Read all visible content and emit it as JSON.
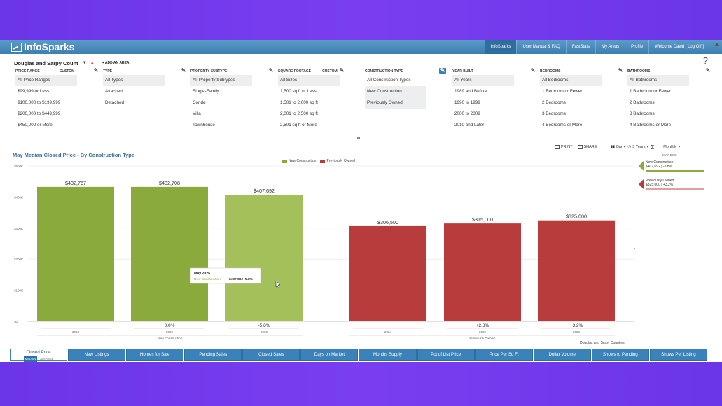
{
  "header": {
    "logo": "InfoSparks",
    "nav": [
      "InfoSparks",
      "User Manual & FAQ",
      "FastStats",
      "My Areas",
      "Profile",
      "Welcome David [ Log Off ]"
    ]
  },
  "area": {
    "selected": "Douglas and Sarpy Count",
    "add_label": "+ ADD AN AREA"
  },
  "filters": [
    {
      "title": "PRICE RANGE",
      "custom": "CUSTOM",
      "options": [
        "All Price Ranges",
        "$99,999 or Less",
        "$100,000 to $199,999",
        "$200,000 to $449,999",
        "$450,000 or More"
      ]
    },
    {
      "title": "TYPE",
      "custom": "",
      "options": [
        "All Types",
        "Attached",
        "Detached"
      ]
    },
    {
      "title": "PROPERTY SUBTYPE",
      "custom": "",
      "options": [
        "All Property Subtypes",
        "Single-Family",
        "Condo",
        "Villa",
        "Townhouse"
      ]
    },
    {
      "title": "SQUARE FOOTAGE",
      "custom": "CUSTOM",
      "options": [
        "All Sizes",
        "1,500 sq ft or Less",
        "1,501 to 2,000 sq ft",
        "2,001 to 2,500 sq ft",
        "2,501 sq ft or More"
      ]
    },
    {
      "title": "CONSTRUCTION TYPE",
      "custom": "",
      "options": [
        "All Construction Types",
        "New Construction",
        "Previously Owned"
      ]
    },
    {
      "title": "YEAR BUILT",
      "custom": "",
      "options": [
        "All Years",
        "1989 and Before",
        "1990 to 1999",
        "2000 to 2009",
        "2010 and Later"
      ]
    },
    {
      "title": "BEDROOMS",
      "custom": "",
      "options": [
        "All Bedrooms",
        "1 Bedroom or Fewer",
        "2 Bedrooms",
        "3 Bedrooms",
        "4 Bedrooms or More"
      ]
    },
    {
      "title": "BATHROOMS",
      "custom": "",
      "options": [
        "All Bathrooms",
        "1 Bathroom or Fewer",
        "2 Bathrooms",
        "3 Bathrooms",
        "4 Bathrooms or More"
      ]
    }
  ],
  "toolbar": {
    "print": "PRINT",
    "share": "SHARE",
    "chart_type": "Bar",
    "range": "3 Years",
    "period": "Monthly",
    "sigma": "Σ"
  },
  "chart_data": {
    "type": "bar",
    "title": "May Median Closed Price - By Construction Type",
    "yticks": [
      "$500K",
      "$400K",
      "$300K",
      "$200K",
      "$100K",
      "$0"
    ],
    "ylim": [
      0,
      500000
    ],
    "series": [
      {
        "name": "New Construction",
        "color": "#8aab3c",
        "group_label": "New Construction",
        "years": [
          "2024",
          "2025",
          "2026"
        ],
        "values": [
          432757,
          432708,
          407692
        ],
        "labels": [
          "$432,757",
          "$432,708",
          "$407,692"
        ],
        "changes": [
          "",
          "0.0%",
          "-5.8%"
        ]
      },
      {
        "name": "Previously Owned",
        "color": "#b83c3c",
        "group_label": "Previously Owned",
        "years": [
          "2024",
          "2025",
          "2026"
        ],
        "values": [
          306500,
          315000,
          325000
        ],
        "labels": [
          "$306,500",
          "$315,000",
          "$325,000"
        ],
        "changes": [
          "",
          "+2.8%",
          "+3.2%"
        ]
      }
    ],
    "tooltip": {
      "title": "May 2026",
      "label": "New Construction:",
      "value": "$407,692 -5.8%"
    },
    "source": "Douglas and Sarpy Counties"
  },
  "side_legend": {
    "month": "MAY 2026",
    "items": [
      {
        "name": "New Construction",
        "value": "$407,692 | -5.8%",
        "color": "#8aab3c"
      },
      {
        "name": "Previously Owned",
        "value": "$325,000 | +3.2%",
        "color": "#b83c3c"
      }
    ]
  },
  "tabs": {
    "active": {
      "label": "Closed Price",
      "sub_on": "MEDIAN",
      "sub_off": "AVERAGE"
    },
    "items": [
      "New Listings",
      "Homes for Sale",
      "Pending Sales",
      "Closed Sales",
      "Days on Market",
      "Months Supply",
      "Pct of List Price",
      "Price Per Sq Ft",
      "Dollar Volume",
      "Shows to Pending",
      "Shows Per Listing"
    ]
  }
}
